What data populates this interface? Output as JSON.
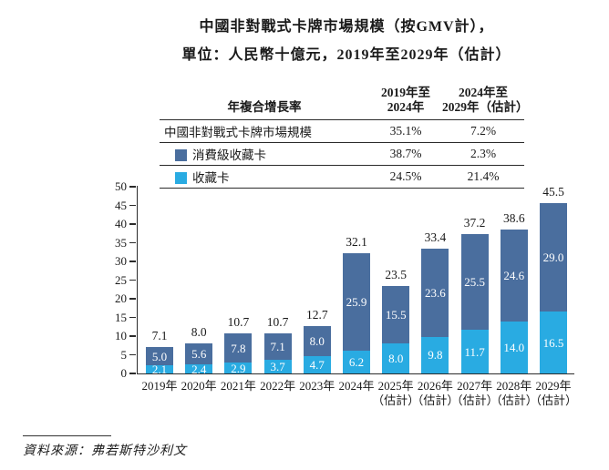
{
  "title": {
    "line1": "中國非對戰式卡牌市場規模（按GMV計），",
    "line2": "單位：人民幣十億元，2019年至2029年（估計）"
  },
  "cagr_table": {
    "header": {
      "label": "年複合增長率",
      "col1_line1": "2019年至",
      "col1_line2": "2024年",
      "col2_line1": "2024年至",
      "col2_line2": "2029年（估計）"
    },
    "rows": [
      {
        "label": "中國非對戰式卡牌市場規模",
        "col1": "35.1%",
        "col2": "7.2%"
      },
      {
        "label": "消費級收藏卡",
        "col1": "38.7%",
        "col2": "2.3%"
      },
      {
        "label": "收藏卡",
        "col1": "24.5%",
        "col2": "21.4%"
      }
    ]
  },
  "chart_data": {
    "type": "bar",
    "stacked": true,
    "title": "中國非對戰式卡牌市場規模（按GMV計），單位：人民幣十億元，2019年至2029年（估計）",
    "xlabel": "",
    "ylabel": "",
    "ylim": [
      0,
      50
    ],
    "ytick_step": 5,
    "grid": false,
    "categories": [
      {
        "label": "2019年",
        "note": ""
      },
      {
        "label": "2020年",
        "note": ""
      },
      {
        "label": "2021年",
        "note": ""
      },
      {
        "label": "2022年",
        "note": ""
      },
      {
        "label": "2023年",
        "note": ""
      },
      {
        "label": "2024年",
        "note": ""
      },
      {
        "label": "2025年",
        "note": "（估計）"
      },
      {
        "label": "2026年",
        "note": "（估計）"
      },
      {
        "label": "2027年",
        "note": "（估計）"
      },
      {
        "label": "2028年",
        "note": "（估計）"
      },
      {
        "label": "2029年",
        "note": "（估計）"
      }
    ],
    "series": [
      {
        "name": "收藏卡",
        "color": "#29abe2",
        "values": [
          2.1,
          2.4,
          2.9,
          3.7,
          4.7,
          6.2,
          8.0,
          9.8,
          11.7,
          14.0,
          16.5
        ]
      },
      {
        "name": "消費級收藏卡",
        "color": "#4a6e9e",
        "values": [
          5.0,
          5.6,
          7.8,
          7.1,
          8.0,
          25.9,
          15.5,
          23.6,
          25.5,
          24.6,
          29.0
        ]
      }
    ],
    "totals": [
      7.1,
      8.0,
      10.7,
      10.7,
      12.7,
      32.1,
      23.5,
      33.4,
      37.2,
      38.6,
      45.5
    ],
    "value_label_color": "#ffffff",
    "total_label_color": "#1a1a1a"
  },
  "footer": {
    "source": "資料來源：弗若斯特沙利文"
  }
}
